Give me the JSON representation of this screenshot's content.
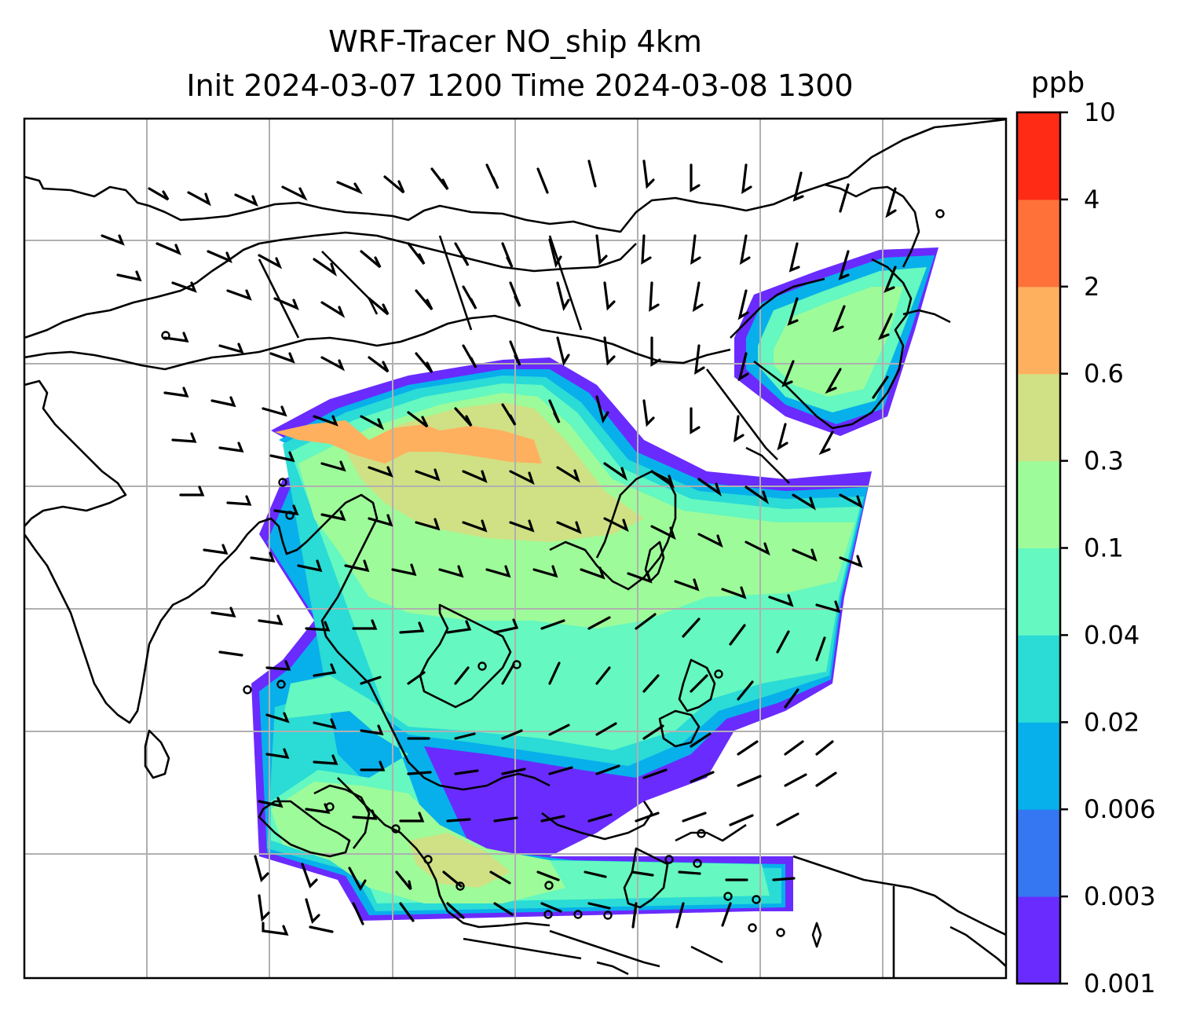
{
  "title": {
    "line1": "WRF-Tracer NO_ship 4km",
    "line2": "Init 2024-03-07 1200 Time 2024-03-08 1300"
  },
  "colorbar": {
    "unit": "ppb",
    "ticks": [
      "0.001",
      "0.003",
      "0.006",
      "0.02",
      "0.04",
      "0.1",
      "0.3",
      "0.6",
      "2",
      "4",
      "10"
    ],
    "colors": [
      "#6a2bff",
      "#3576f3",
      "#07b0ea",
      "#2adbd6",
      "#65f8c0",
      "#9efb99",
      "#cfe184",
      "#ffb05f",
      "#ff7139",
      "#ff2b15"
    ]
  },
  "map": {
    "grid": true,
    "gridlines_x": 7,
    "gridlines_y": 6
  }
}
